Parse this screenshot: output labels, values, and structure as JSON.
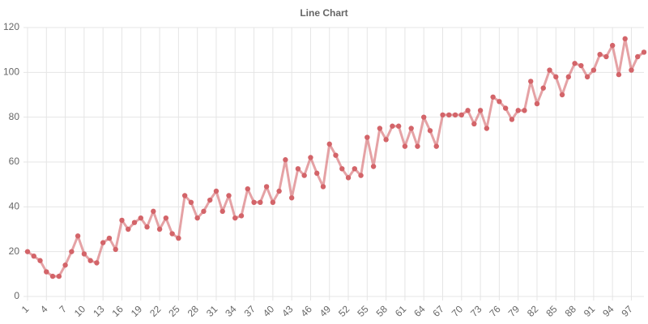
{
  "chart_data": {
    "type": "line",
    "title": "Line Chart",
    "categories": [
      "1",
      null,
      null,
      "4",
      null,
      null,
      "7",
      null,
      null,
      "10",
      null,
      null,
      "13",
      null,
      null,
      "16",
      null,
      null,
      "19",
      null,
      null,
      "22",
      null,
      null,
      "25",
      null,
      null,
      "28",
      null,
      null,
      "31",
      null,
      null,
      "34",
      null,
      null,
      "37",
      null,
      null,
      "40",
      null,
      null,
      "43",
      null,
      null,
      "46",
      null,
      null,
      "49",
      null,
      null,
      "52",
      null,
      null,
      "55",
      null,
      null,
      "58",
      null,
      null,
      "61",
      null,
      null,
      "64",
      null,
      null,
      "67",
      null,
      null,
      "70",
      null,
      null,
      "73",
      null,
      null,
      "76",
      null,
      null,
      "79",
      null,
      null,
      "82",
      null,
      null,
      "85",
      null,
      null,
      "88",
      null,
      null,
      "91",
      null,
      null,
      "94",
      null,
      null,
      "97",
      null,
      null
    ],
    "series": [
      {
        "color": "#d36469",
        "values": [
          20,
          18,
          16,
          11,
          9,
          9,
          14,
          20,
          27,
          19,
          16,
          15,
          24,
          26,
          21,
          34,
          30,
          33,
          35,
          31,
          38,
          30,
          35,
          28,
          26,
          45,
          42,
          35,
          38,
          43,
          47,
          38,
          45,
          35,
          36,
          48,
          42,
          42,
          49,
          42,
          47,
          61,
          44,
          57,
          54,
          62,
          55,
          49,
          68,
          63,
          57,
          53,
          57,
          54,
          71,
          58,
          75,
          70,
          76,
          76,
          67,
          75,
          67,
          80,
          74,
          67,
          81,
          81,
          81,
          81,
          83,
          77,
          83,
          75,
          89,
          87,
          84,
          79,
          83,
          83,
          96,
          86,
          93,
          101,
          98,
          90,
          98,
          104,
          103,
          98,
          101,
          108,
          107,
          112,
          99,
          115,
          101,
          107,
          109
        ]
      }
    ],
    "ylim": [
      0,
      120
    ],
    "yticks": [
      0,
      20,
      40,
      60,
      80,
      100,
      120
    ],
    "grid": true
  }
}
